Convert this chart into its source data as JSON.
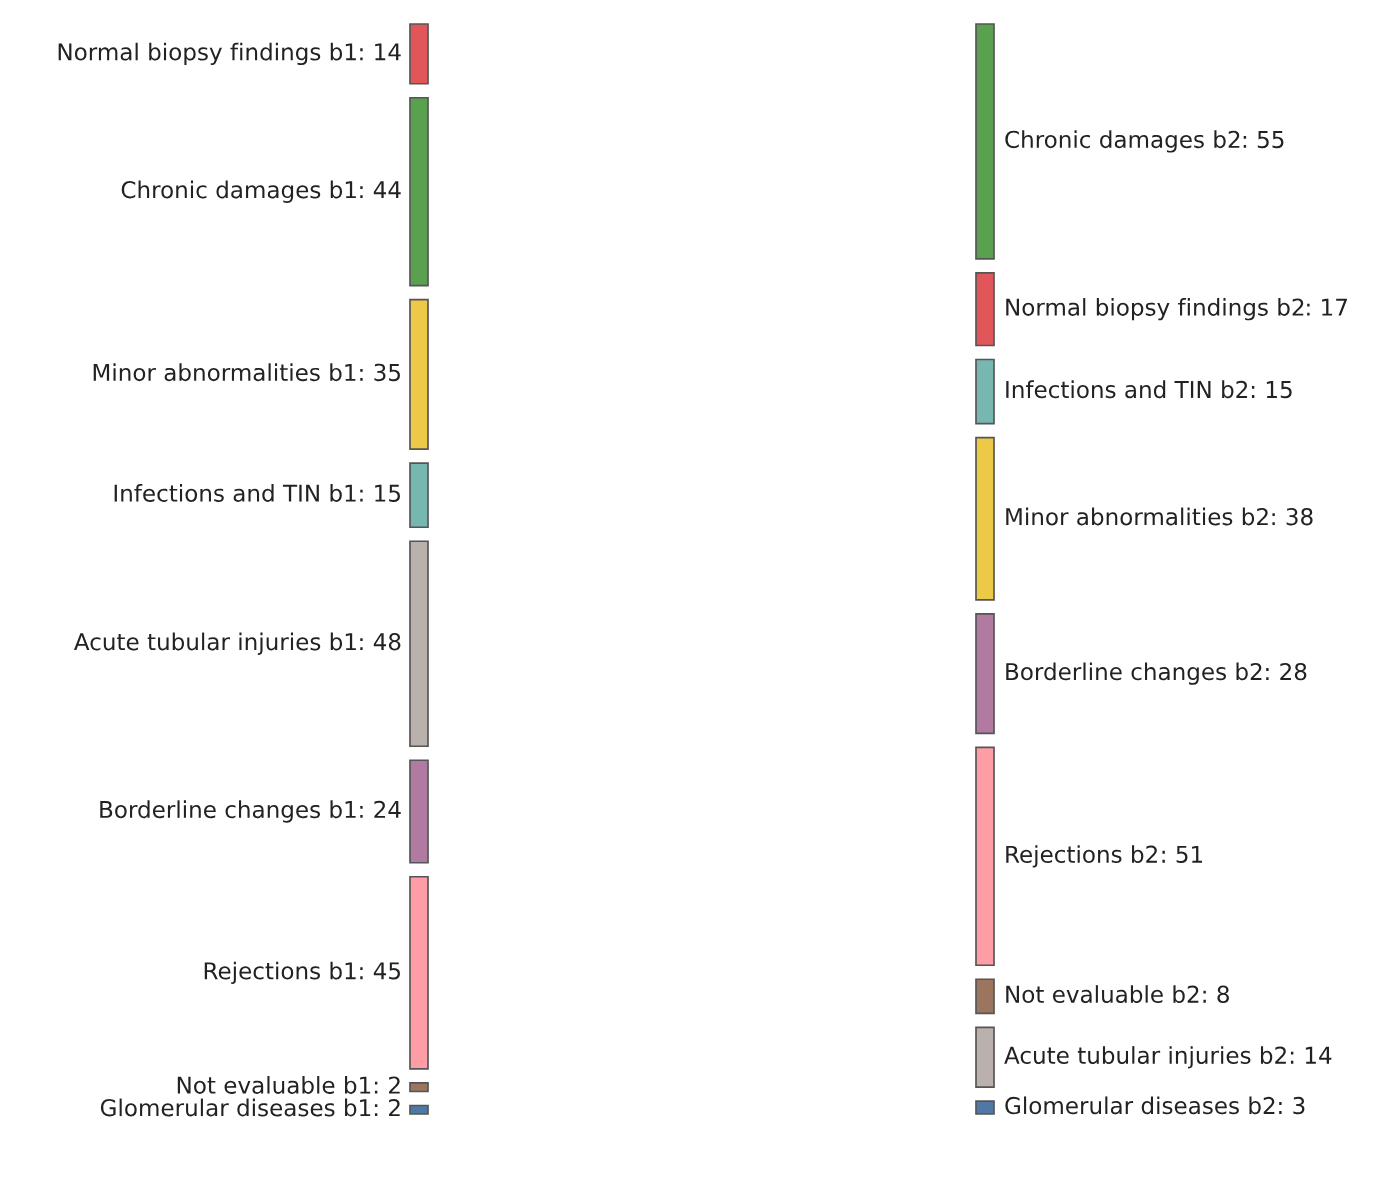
{
  "chart_data": [
    {
      "type": "other",
      "categories": [
        "Normal biopsy findings b1",
        "Chronic damages b1",
        "Minor abnormalities b1",
        "Infections and TIN b1",
        "Acute tubular injuries b1",
        "Borderline changes b1",
        "Rejections b1",
        "Not evaluable b1",
        "Glomerular diseases b1"
      ],
      "values": [
        14,
        44,
        35,
        15,
        48,
        24,
        45,
        2,
        2
      ],
      "value_labels": [
        ": 14",
        ": 44",
        ": 35",
        ": 15",
        ": 48",
        ": 24",
        ": 45",
        ": 2",
        ": 2"
      ],
      "colors": [
        "#e15759",
        "#59a14f",
        "#edc948",
        "#76b7b2",
        "#bab0ac",
        "#b07aa1",
        "#ff9da7",
        "#9c755f",
        "#4e79a7"
      ]
    },
    {
      "type": "other",
      "categories": [
        "Chronic damages b2",
        "Normal biopsy findings b2",
        "Infections and TIN b2",
        "Minor abnormalities b2",
        "Borderline changes b2",
        "Rejections b2",
        "Not evaluable b2",
        "Acute tubular injuries b2",
        "Glomerular diseases b2"
      ],
      "values": [
        55,
        17,
        15,
        38,
        28,
        51,
        8,
        14,
        3
      ],
      "value_labels": [
        ": 55",
        ": 17",
        ": 15",
        ": 38",
        ": 28",
        ": 51",
        ": 8",
        ": 14",
        ": 3"
      ],
      "colors": [
        "#59a14f",
        "#e15759",
        "#76b7b2",
        "#edc948",
        "#b07aa1",
        "#ff9da7",
        "#9c755f",
        "#bab0ac",
        "#4e79a7"
      ]
    }
  ]
}
